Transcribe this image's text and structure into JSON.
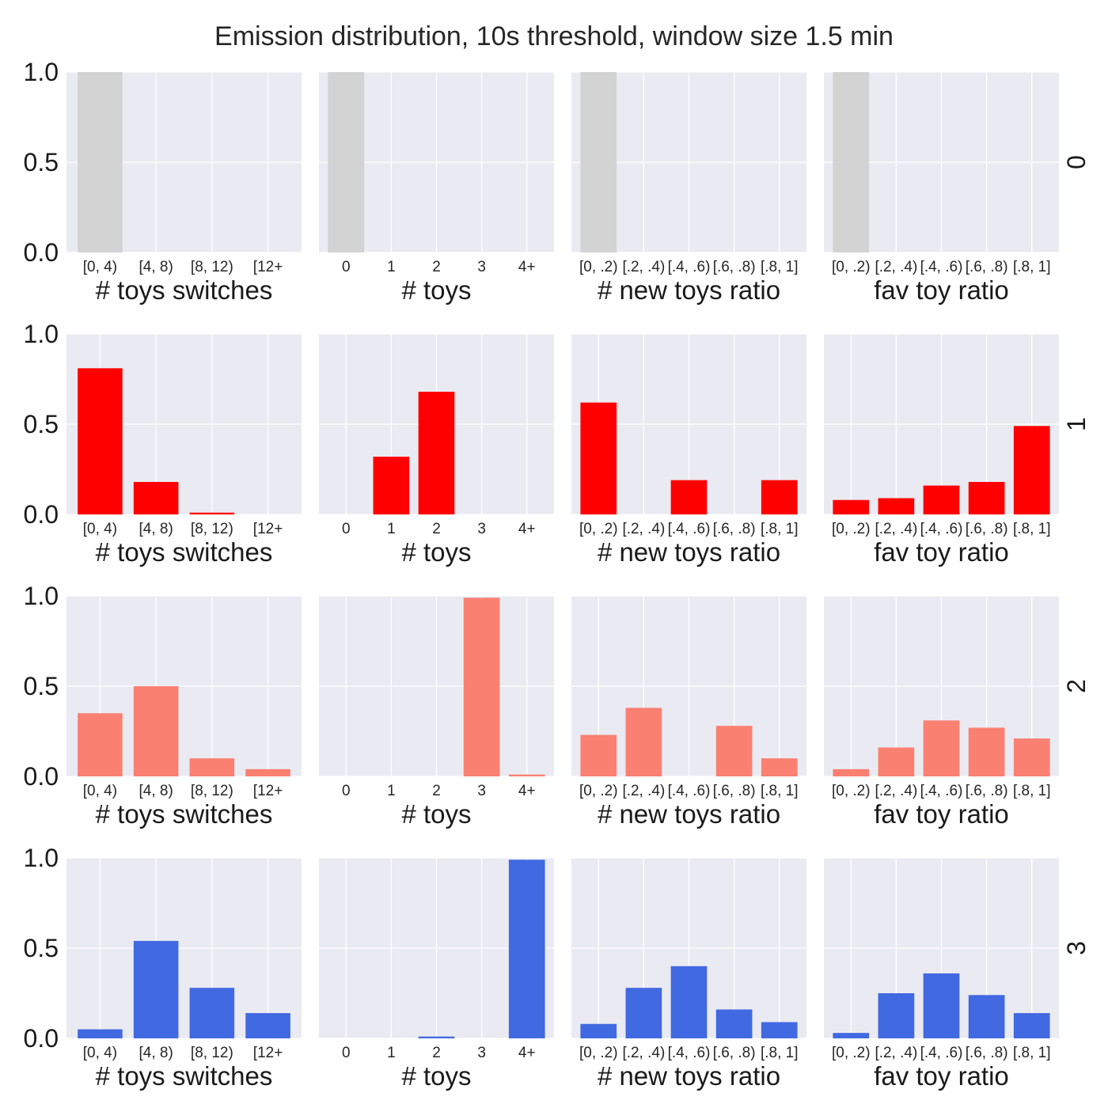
{
  "title": "Emission distribution, 10s threshold, window size 1.5 min",
  "chart_data": {
    "type": "bar",
    "layout": "grid 4 rows x 4 columns",
    "ylim": [
      0,
      1.0
    ],
    "yticks": [
      "0.0",
      "0.5",
      "1.0"
    ],
    "grid": true,
    "columns": [
      {
        "xlabel": "# toys switches",
        "categories": [
          "[0, 4)",
          "[4, 8)",
          "[8, 12)",
          "[12+"
        ]
      },
      {
        "xlabel": "# toys",
        "categories": [
          "0",
          "1",
          "2",
          "3",
          "4+"
        ]
      },
      {
        "xlabel": "# new toys ratio",
        "categories": [
          "[0, .2)",
          "[.2, .4)",
          "[.4, .6)",
          "[.6, .8)",
          "[.8, 1]"
        ]
      },
      {
        "xlabel": "fav toy ratio",
        "categories": [
          "[0, .2)",
          "[.2, .4)",
          "[.4, .6)",
          "[.6, .8)",
          "[.8, 1]"
        ]
      }
    ],
    "rows": [
      {
        "label": "0",
        "color": "#d3d3d3",
        "values": [
          [
            1.0,
            0.0,
            0.0,
            0.0
          ],
          [
            1.0,
            0.0,
            0.0,
            0.0,
            0.0
          ],
          [
            1.0,
            0.0,
            0.0,
            0.0,
            0.0
          ],
          [
            1.0,
            0.0,
            0.0,
            0.0,
            0.0
          ]
        ]
      },
      {
        "label": "1",
        "color": "#ff0000",
        "values": [
          [
            0.81,
            0.18,
            0.01,
            0.0
          ],
          [
            0.0,
            0.32,
            0.68,
            0.0,
            0.0
          ],
          [
            0.62,
            0.0,
            0.19,
            0.0,
            0.19
          ],
          [
            0.08,
            0.09,
            0.16,
            0.18,
            0.49
          ]
        ]
      },
      {
        "label": "2",
        "color": "#fa8072",
        "values": [
          [
            0.35,
            0.5,
            0.1,
            0.04
          ],
          [
            0.0,
            0.0,
            0.0,
            0.99,
            0.01
          ],
          [
            0.23,
            0.38,
            0.0,
            0.28,
            0.1
          ],
          [
            0.04,
            0.16,
            0.31,
            0.27,
            0.21
          ]
        ]
      },
      {
        "label": "3",
        "color": "#4169e1",
        "values": [
          [
            0.05,
            0.54,
            0.28,
            0.14
          ],
          [
            0.0,
            0.0,
            0.01,
            0.0,
            0.99
          ],
          [
            0.08,
            0.28,
            0.4,
            0.16,
            0.09
          ],
          [
            0.03,
            0.25,
            0.36,
            0.24,
            0.14
          ]
        ]
      }
    ]
  }
}
